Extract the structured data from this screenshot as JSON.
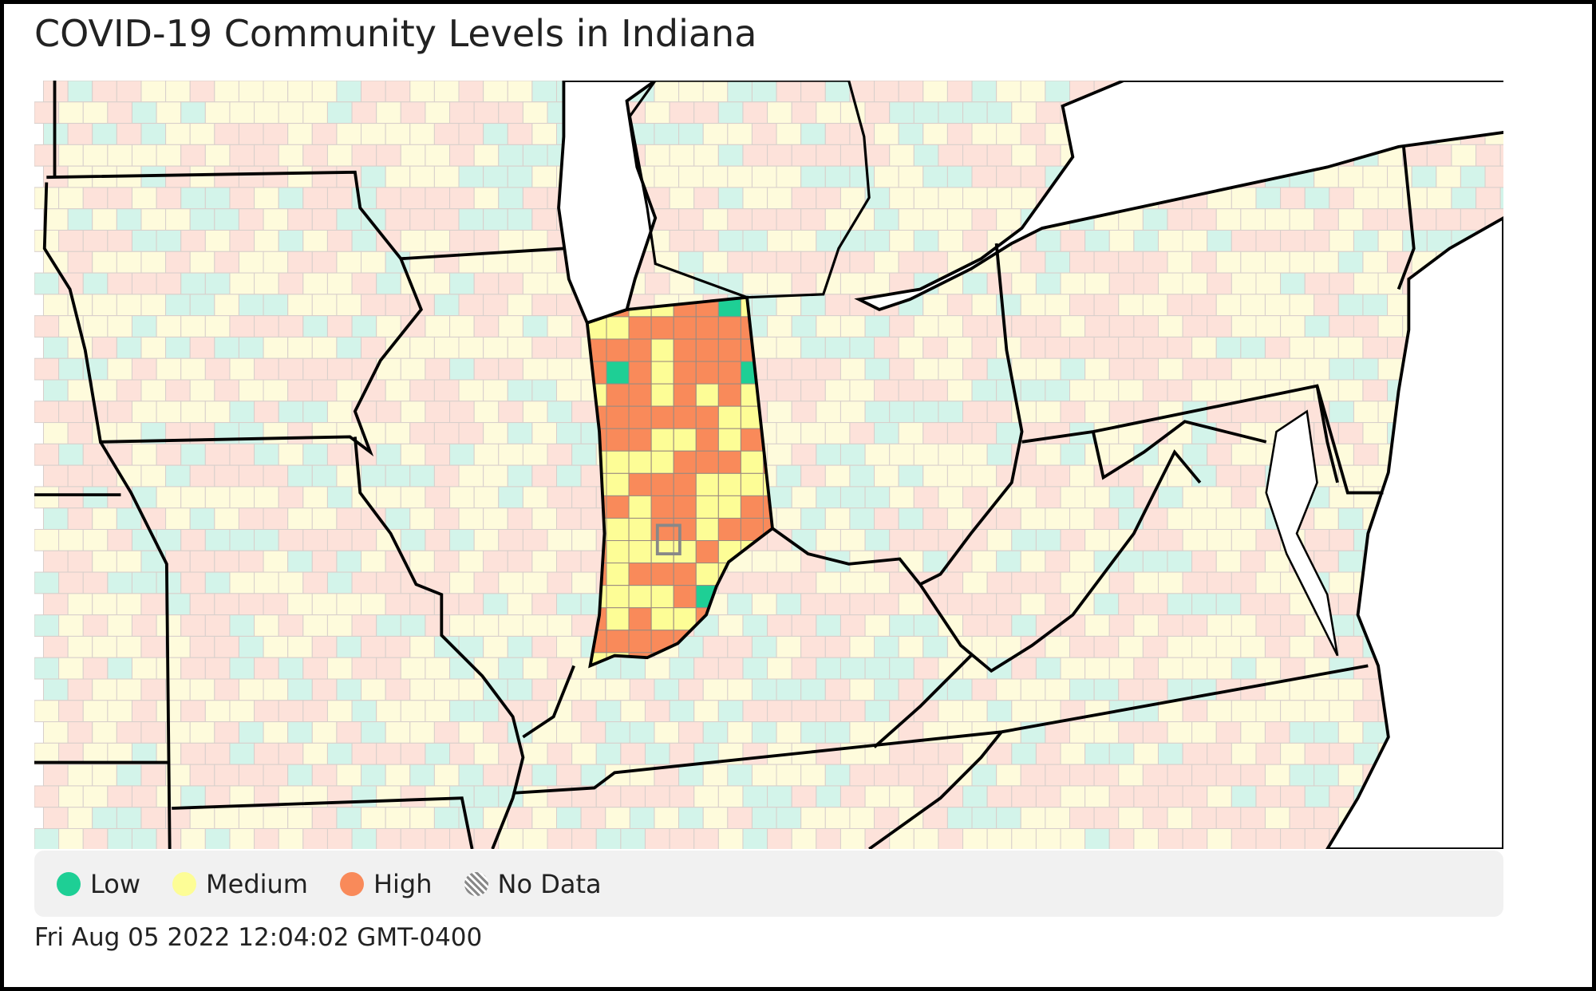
{
  "header": {
    "title": "COVID-19 Community Levels in Indiana"
  },
  "legend": {
    "items": [
      {
        "label": "Low",
        "color": "#1ecf95"
      },
      {
        "label": "Medium",
        "color": "#fdfd96"
      },
      {
        "label": "High",
        "color": "#f98a5a"
      },
      {
        "label": "No Data",
        "color": "#888888",
        "hatched": true
      }
    ]
  },
  "footer": {
    "timestamp": "Fri Aug 05 2022 12:04:02 GMT-0400"
  }
}
